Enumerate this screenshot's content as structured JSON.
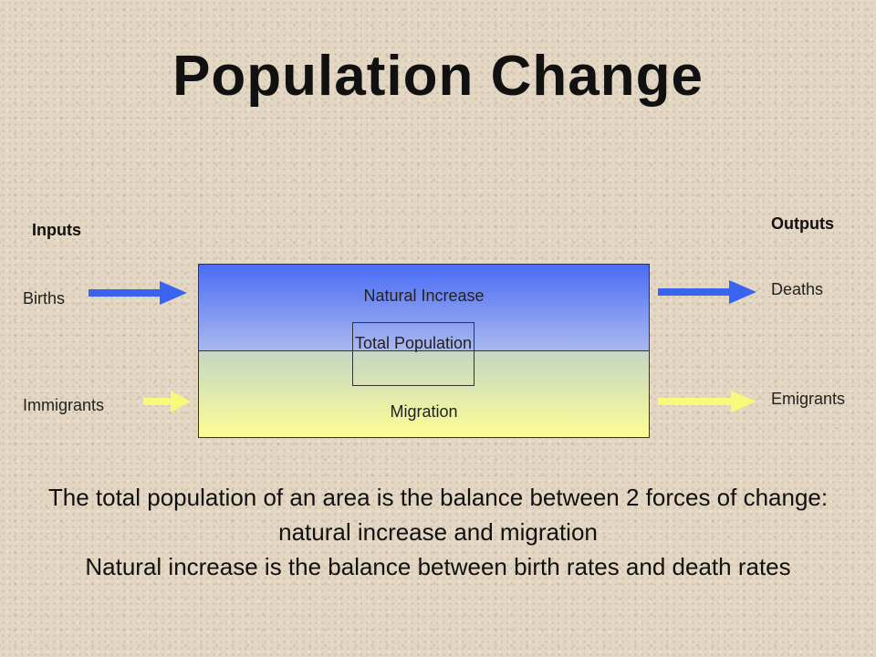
{
  "title": "Population Change",
  "inputs": {
    "heading": "Inputs",
    "items": [
      "Births",
      "Immigrants"
    ]
  },
  "outputs": {
    "heading": "Outputs",
    "items": [
      "Deaths",
      "Emigrants"
    ]
  },
  "system": {
    "natural_increase": "Natural Increase",
    "migration": "Migration",
    "total_population": "Total Population"
  },
  "arrows": {
    "births": {
      "color": "#3a63f0",
      "icon": "arrow-right-icon"
    },
    "immigrants": {
      "color": "#f8f87a",
      "icon": "arrow-right-icon"
    },
    "deaths": {
      "color": "#3a63f0",
      "icon": "arrow-right-icon"
    },
    "emigrants": {
      "color": "#f8f87a",
      "icon": "arrow-right-icon"
    }
  },
  "summary": {
    "line1": "The total population of an area is the balance between 2 forces of change: natural increase and migration",
    "line2": "Natural increase is the balance between birth rates and death rates"
  }
}
